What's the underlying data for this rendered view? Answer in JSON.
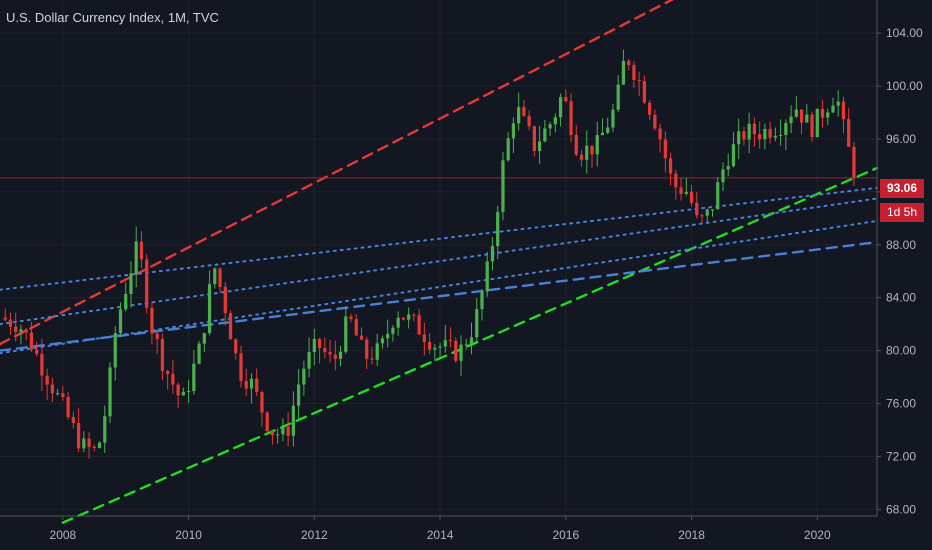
{
  "title": "U.S. Dollar Currency Index, 1M, TVC",
  "last_price": "93.06",
  "countdown": "1d 5h",
  "colors": {
    "background": "#131722",
    "up": "#4caf50",
    "down": "#e53935",
    "resistance": "#e53935",
    "support": "#22dd22",
    "channel": "#4a7fd8",
    "last_price_line": "#c42030"
  },
  "chart_data": {
    "type": "candlestick",
    "interval": "1M",
    "xlim": [
      2007.0,
      2020.95
    ],
    "ylim": [
      67.5,
      106.5
    ],
    "x_ticks": [
      "2008",
      "2010",
      "2012",
      "2014",
      "2016",
      "2018",
      "2020"
    ],
    "y_ticks": [
      "68.00",
      "72.00",
      "76.00",
      "80.00",
      "84.00",
      "88.00",
      "92.00",
      "96.00",
      "100.00",
      "104.00"
    ],
    "close_path": [
      [
        2007.0,
        82.5
      ],
      [
        2007.3,
        82.0
      ],
      [
        2007.5,
        80.5
      ],
      [
        2007.7,
        78.5
      ],
      [
        2007.95,
        76.2
      ],
      [
        2008.3,
        72.8
      ],
      [
        2008.55,
        72.3
      ],
      [
        2008.7,
        76.0
      ],
      [
        2008.85,
        82.0
      ],
      [
        2009.1,
        86.5
      ],
      [
        2009.2,
        88.0
      ],
      [
        2009.4,
        82.0
      ],
      [
        2009.6,
        79.0
      ],
      [
        2009.9,
        76.0
      ],
      [
        2010.2,
        80.5
      ],
      [
        2010.4,
        86.5
      ],
      [
        2010.55,
        84.0
      ],
      [
        2010.8,
        78.5
      ],
      [
        2011.0,
        77.5
      ],
      [
        2011.3,
        74.0
      ],
      [
        2011.55,
        73.5
      ],
      [
        2011.8,
        78.5
      ],
      [
        2012.05,
        80.5
      ],
      [
        2012.3,
        79.0
      ],
      [
        2012.55,
        82.5
      ],
      [
        2012.8,
        79.5
      ],
      [
        2013.05,
        80.0
      ],
      [
        2013.3,
        83.0
      ],
      [
        2013.6,
        82.0
      ],
      [
        2013.9,
        80.5
      ],
      [
        2014.3,
        79.8
      ],
      [
        2014.55,
        82.0
      ],
      [
        2014.8,
        87.0
      ],
      [
        2015.0,
        94.0
      ],
      [
        2015.2,
        98.5
      ],
      [
        2015.5,
        95.5
      ],
      [
        2015.8,
        97.5
      ],
      [
        2015.95,
        99.5
      ],
      [
        2016.2,
        95.0
      ],
      [
        2016.5,
        95.5
      ],
      [
        2016.8,
        98.5
      ],
      [
        2016.95,
        102.5
      ],
      [
        2017.2,
        100.0
      ],
      [
        2017.45,
        97.0
      ],
      [
        2017.7,
        92.5
      ],
      [
        2017.95,
        92.0
      ],
      [
        2018.1,
        89.5
      ],
      [
        2018.3,
        90.5
      ],
      [
        2018.55,
        94.5
      ],
      [
        2018.85,
        96.5
      ],
      [
        2019.1,
        96.5
      ],
      [
        2019.4,
        97.0
      ],
      [
        2019.65,
        98.5
      ],
      [
        2019.9,
        96.8
      ],
      [
        2020.15,
        98.5
      ],
      [
        2020.3,
        99.5
      ],
      [
        2020.45,
        96.0
      ],
      [
        2020.62,
        93.06
      ]
    ],
    "trend_lines": [
      {
        "name": "resistance",
        "style": "dashed",
        "color": "#e53935",
        "points": [
          [
            2007.0,
            80.5
          ],
          [
            2019.2,
            110.2
          ]
        ]
      },
      {
        "name": "support",
        "style": "dashed",
        "color": "#22dd22",
        "points": [
          [
            2008.0,
            67.0
          ],
          [
            2020.95,
            93.8
          ]
        ]
      },
      {
        "name": "channel-upper",
        "style": "dotted",
        "color": "#4a7fd8",
        "points": [
          [
            2007.0,
            84.6
          ],
          [
            2020.95,
            92.3
          ]
        ]
      },
      {
        "name": "channel-mid",
        "style": "dotted",
        "color": "#4a7fd8",
        "points": [
          [
            2007.0,
            82.0
          ],
          [
            2020.95,
            91.5
          ]
        ]
      },
      {
        "name": "channel-low",
        "style": "dotted",
        "color": "#4a7fd8",
        "points": [
          [
            2007.0,
            79.8
          ],
          [
            2020.95,
            89.8
          ]
        ]
      },
      {
        "name": "channel-base",
        "style": "dashed",
        "color": "#4a7fd8",
        "points": [
          [
            2007.0,
            80.0
          ],
          [
            2020.95,
            88.2
          ]
        ]
      }
    ]
  }
}
